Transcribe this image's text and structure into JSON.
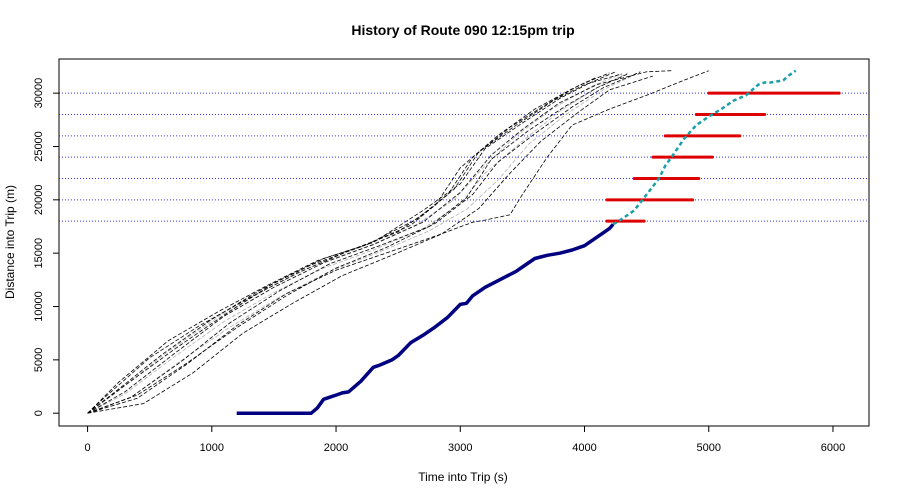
{
  "chart_data": {
    "type": "line",
    "title": "History of Route 090 12:15pm trip",
    "xlabel": "Time into Trip (s)",
    "ylabel": "Distance into Trip (m)",
    "xlim": [
      -230,
      6290
    ],
    "ylim": [
      -1200,
      33200
    ],
    "xticks": [
      0,
      1000,
      2000,
      3000,
      4000,
      5000,
      6000
    ],
    "yticks": [
      0,
      5000,
      10000,
      15000,
      20000,
      25000,
      30000
    ],
    "xtick_labels": [
      "0",
      "1000",
      "2000",
      "3000",
      "4000",
      "5000",
      "6000"
    ],
    "ytick_labels": [
      "0",
      "5000",
      "10000",
      "15000",
      "20000",
      "25000",
      "30000"
    ],
    "grid": false,
    "stop_lines": [
      18000,
      20000,
      22000,
      24000,
      26000,
      28000,
      30000
    ],
    "colors": {
      "stop_line": "#3333ff",
      "history_dark": "#000000",
      "history_light": "#b0b0b0",
      "current_trip": "#000080",
      "prediction": "#1a9fa8",
      "prediction_range": "#dd0000"
    },
    "history_series": [
      {
        "style": "dark",
        "x": [
          0,
          300,
          700,
          1100,
          1500,
          1900,
          2300,
          2700,
          3000,
          3200,
          3500,
          3800,
          4050,
          4250
        ],
        "y": [
          0,
          2600,
          6000,
          9200,
          12200,
          14500,
          16000,
          19000,
          21500,
          24800,
          27200,
          29500,
          31000,
          32000
        ]
      },
      {
        "style": "dark",
        "x": [
          0,
          250,
          650,
          1050,
          1450,
          1850,
          2250,
          2650,
          2950,
          3150,
          3450,
          3750,
          4000,
          4300
        ],
        "y": [
          0,
          2900,
          6800,
          9500,
          12000,
          14300,
          15800,
          18200,
          21000,
          24500,
          27000,
          29300,
          30800,
          31800
        ]
      },
      {
        "style": "dark",
        "x": [
          0,
          200,
          600,
          1000,
          1400,
          1800,
          2200,
          2600,
          2900,
          3100,
          3400,
          3700,
          3950,
          4200
        ],
        "y": [
          0,
          1800,
          5500,
          8800,
          11600,
          13900,
          15600,
          17600,
          20500,
          24000,
          26800,
          29000,
          30700,
          31900
        ]
      },
      {
        "style": "dark",
        "x": [
          0,
          350,
          750,
          1150,
          1550,
          1950,
          2350,
          2750,
          3050,
          3250,
          3550,
          3850,
          4100,
          4350
        ],
        "y": [
          0,
          1500,
          4800,
          8500,
          11500,
          14000,
          15700,
          17500,
          20200,
          23800,
          26500,
          28800,
          30500,
          31800
        ]
      },
      {
        "style": "dark",
        "x": [
          0,
          400,
          800,
          1200,
          1600,
          2000,
          2400,
          2800,
          3100,
          3300,
          3600,
          3900,
          4150,
          4450
        ],
        "y": [
          0,
          1700,
          4700,
          8000,
          11000,
          13600,
          15500,
          17800,
          20500,
          23500,
          26200,
          28700,
          30500,
          32000
        ]
      },
      {
        "style": "dark",
        "x": [
          0,
          150,
          500,
          900,
          1300,
          1700,
          2100,
          2500,
          2800,
          3000,
          3300,
          3600,
          3900,
          4100
        ],
        "y": [
          0,
          1600,
          5200,
          8200,
          10800,
          13200,
          15200,
          17000,
          19500,
          23000,
          26000,
          28500,
          30400,
          31500
        ]
      },
      {
        "style": "dark",
        "x": [
          0,
          450,
          850,
          1250,
          1650,
          2050,
          2450,
          2850,
          3150,
          3400,
          3650,
          3950,
          4200,
          4550
        ],
        "y": [
          0,
          900,
          3800,
          7500,
          10300,
          12900,
          14800,
          16800,
          19200,
          22500,
          25500,
          28200,
          30300,
          31600
        ]
      },
      {
        "style": "dark",
        "x": [
          0,
          300,
          700,
          1100,
          1500,
          1900,
          2300,
          2700,
          3000,
          3250,
          3500,
          3800,
          4100,
          4500,
          4700
        ],
        "y": [
          0,
          2000,
          5600,
          9100,
          11800,
          14100,
          15800,
          17900,
          20700,
          24200,
          26600,
          29100,
          30800,
          32000,
          32100
        ]
      },
      {
        "style": "dark",
        "x": [
          0,
          400,
          800,
          1200,
          1600,
          2000,
          2400,
          2800,
          3100,
          3200,
          3400,
          3500,
          3700,
          3900,
          4200,
          4500,
          4800,
          5000
        ],
        "y": [
          0,
          1400,
          4600,
          8200,
          11200,
          13400,
          15000,
          16600,
          17900,
          18100,
          18600,
          20500,
          24000,
          27000,
          28500,
          29800,
          31200,
          32100
        ]
      },
      {
        "style": "light",
        "x": [
          0,
          300,
          700,
          1100,
          1500,
          1900,
          2300,
          2700,
          3000,
          3200,
          3500,
          3800,
          4100,
          4350
        ],
        "y": [
          0,
          1800,
          5300,
          8600,
          11300,
          13600,
          15300,
          17300,
          19600,
          22500,
          25500,
          28300,
          30500,
          31900
        ]
      },
      {
        "style": "light",
        "x": [
          0,
          350,
          750,
          1150,
          1550,
          1950,
          2350,
          2750,
          3050,
          3300,
          3550,
          3850,
          4150,
          4400
        ],
        "y": [
          0,
          1500,
          4900,
          8100,
          10900,
          13300,
          15100,
          17100,
          19100,
          21800,
          25200,
          28000,
          30300,
          31700
        ]
      },
      {
        "style": "light",
        "x": [
          0,
          250,
          650,
          1050,
          1450,
          1850,
          2250,
          2650,
          2950,
          3200,
          3450,
          3750,
          4050,
          4300
        ],
        "y": [
          0,
          2100,
          5800,
          9000,
          11700,
          14000,
          15600,
          17700,
          20000,
          23200,
          26000,
          28600,
          30600,
          31800
        ]
      }
    ],
    "current_trip": {
      "x": [
        1200,
        1400,
        1600,
        1800,
        1850,
        1900,
        1950,
        2000,
        2050,
        2100,
        2200,
        2300,
        2350,
        2450,
        2500,
        2600,
        2700,
        2800,
        2900,
        3000,
        3050,
        3100,
        3200,
        3300,
        3400,
        3450,
        3500,
        3600,
        3700,
        3800,
        3900,
        4000,
        4100,
        4150,
        4200,
        4230
      ],
      "y": [
        0,
        0,
        0,
        0,
        500,
        1300,
        1500,
        1700,
        1900,
        2000,
        3000,
        4300,
        4500,
        5000,
        5400,
        6600,
        7300,
        8100,
        9000,
        10200,
        10300,
        11000,
        11800,
        12400,
        13000,
        13300,
        13700,
        14500,
        14800,
        15000,
        15300,
        15700,
        16500,
        16900,
        17300,
        17700
      ]
    },
    "prediction": {
      "x": [
        4230,
        4300,
        4400,
        4500,
        4600,
        4650,
        4700,
        4800,
        4900,
        5000,
        5100,
        5200,
        5300,
        5400,
        5450,
        5500,
        5600,
        5650,
        5700
      ],
      "y": [
        17700,
        18200,
        19000,
        20500,
        22000,
        23200,
        24000,
        25700,
        27000,
        27800,
        28500,
        29300,
        29800,
        30800,
        31000,
        31000,
        31200,
        31700,
        32100
      ]
    },
    "prediction_ranges": [
      {
        "y": 18000,
        "xmin": 4180,
        "xmax": 4480
      },
      {
        "y": 20000,
        "xmin": 4180,
        "xmax": 4870
      },
      {
        "y": 22000,
        "xmin": 4400,
        "xmax": 4920
      },
      {
        "y": 24000,
        "xmin": 4550,
        "xmax": 5030
      },
      {
        "y": 26000,
        "xmin": 4650,
        "xmax": 5250
      },
      {
        "y": 28000,
        "xmin": 4900,
        "xmax": 5450
      },
      {
        "y": 30000,
        "xmin": 5000,
        "xmax": 6050
      }
    ]
  }
}
